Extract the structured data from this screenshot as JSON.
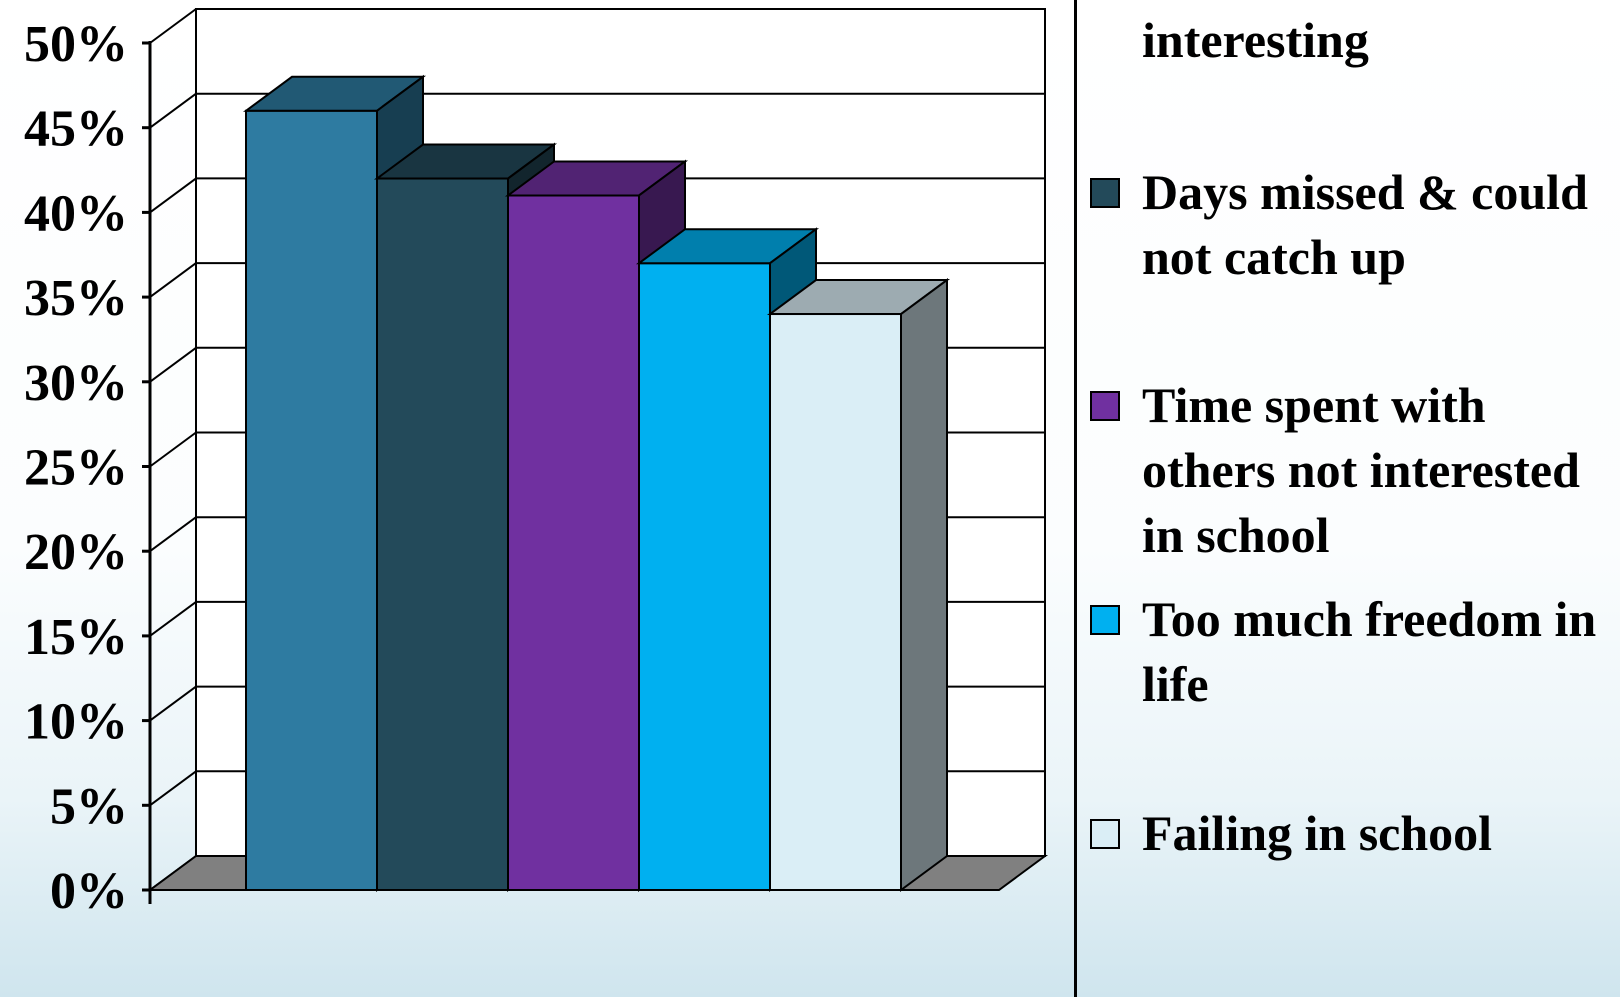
{
  "chart_data": {
    "type": "bar",
    "three_d": true,
    "title": "",
    "xlabel": "",
    "ylabel": "",
    "ylim": [
      0,
      50
    ],
    "y_ticks": [
      "0%",
      "5%",
      "10%",
      "15%",
      "20%",
      "25%",
      "30%",
      "35%",
      "40%",
      "45%",
      "50%"
    ],
    "grid": true,
    "legend_position": "right",
    "series": [
      {
        "name": "interesting",
        "value": 46,
        "color": "#2e7ba1"
      },
      {
        "name": "Days missed & could not catch up",
        "value": 42,
        "color": "#234a5a"
      },
      {
        "name": "Time spent with others not interested in school",
        "value": 41,
        "color": "#7030a0"
      },
      {
        "name": "Too much freedom in life",
        "value": 37,
        "color": "#00b0f0"
      },
      {
        "name": "Failing in school",
        "value": 34,
        "color": "#daeef6"
      }
    ]
  }
}
